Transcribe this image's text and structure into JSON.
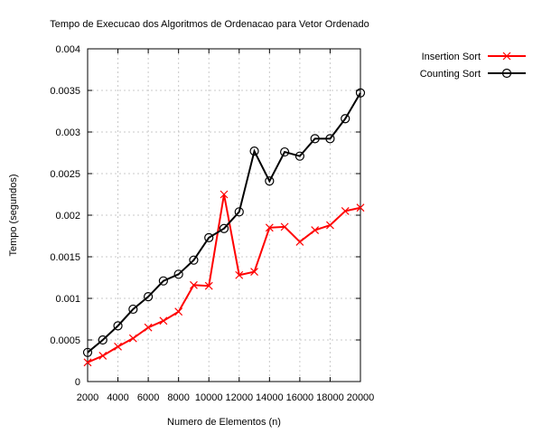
{
  "chart_data": {
    "type": "line",
    "title": "Tempo de Execucao dos Algoritmos de Ordenacao para Vetor Ordenado",
    "xlabel": "Numero de Elementos (n)",
    "ylabel": "Tempo (segundos)",
    "xlim": [
      2000,
      20000
    ],
    "ylim": [
      0,
      0.004
    ],
    "xticks": [
      "2000",
      "4000",
      "6000",
      "8000",
      "10000",
      "12000",
      "14000",
      "16000",
      "18000",
      "20000"
    ],
    "yticks": [
      "0",
      "0.0005",
      "0.001",
      "0.0015",
      "0.002",
      "0.0025",
      "0.003",
      "0.0035",
      "0.004"
    ],
    "grid": true,
    "legend_position": "top-right",
    "x": [
      2000,
      3000,
      4000,
      5000,
      6000,
      7000,
      8000,
      9000,
      10000,
      11000,
      12000,
      13000,
      14000,
      15000,
      16000,
      17000,
      18000,
      19000,
      20000
    ],
    "series": [
      {
        "name": "Insertion Sort",
        "color": "#ff0000",
        "marker": "x",
        "values": [
          0.00023,
          0.00031,
          0.00042,
          0.00052,
          0.00065,
          0.00073,
          0.00084,
          0.00116,
          0.00115,
          0.00225,
          0.00128,
          0.00132,
          0.00185,
          0.00186,
          0.00168,
          0.00182,
          0.00188,
          0.00205,
          0.00209
        ]
      },
      {
        "name": "Counting Sort",
        "color": "#000000",
        "marker": "circle",
        "values": [
          0.00035,
          0.0005,
          0.00067,
          0.00087,
          0.00102,
          0.00121,
          0.00129,
          0.00146,
          0.00173,
          0.00184,
          0.00204,
          0.00277,
          0.00241,
          0.00276,
          0.00271,
          0.00292,
          0.00292,
          0.00316,
          0.00347
        ]
      }
    ]
  }
}
